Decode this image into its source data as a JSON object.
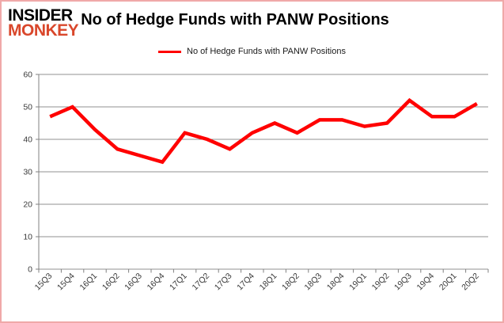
{
  "logo": {
    "line1": "INSIDER",
    "line2": "MONKEY"
  },
  "header": {
    "title": "No of Hedge Funds with PANW Positions"
  },
  "legend": {
    "label": "No of Hedge Funds with PANW Positions"
  },
  "colors": {
    "series": "#ff0000",
    "logo_accent": "#d9472b",
    "grid": "#919191",
    "axis": "#808080",
    "tick_label": "#3a3a3a",
    "frame_border": "#f0a9a9"
  },
  "chart_data": {
    "type": "line",
    "title": "No of Hedge Funds with PANW Positions",
    "categories": [
      "15Q3",
      "15Q4",
      "16Q1",
      "16Q2",
      "16Q3",
      "16Q4",
      "17Q1",
      "17Q2",
      "17Q3",
      "17Q4",
      "18Q1",
      "18Q2",
      "18Q3",
      "18Q4",
      "19Q1",
      "19Q2",
      "19Q3",
      "19Q4",
      "20Q1",
      "20Q2"
    ],
    "series": [
      {
        "name": "No of Hedge Funds with PANW Positions",
        "color": "#ff0000",
        "values": [
          47,
          50,
          43,
          37,
          35,
          33,
          42,
          40,
          37,
          42,
          45,
          42,
          46,
          46,
          44,
          45,
          52,
          47,
          47,
          51
        ]
      }
    ],
    "xlabel": "",
    "ylabel": "",
    "ylim": [
      0,
      60
    ],
    "ytick_interval": 10,
    "grid": true,
    "legend_position": "top"
  }
}
